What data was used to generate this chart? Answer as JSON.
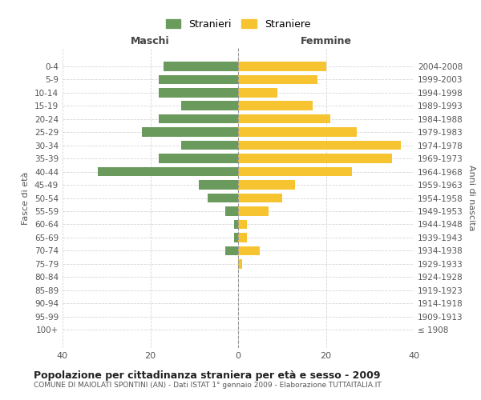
{
  "age_groups": [
    "100+",
    "95-99",
    "90-94",
    "85-89",
    "80-84",
    "75-79",
    "70-74",
    "65-69",
    "60-64",
    "55-59",
    "50-54",
    "45-49",
    "40-44",
    "35-39",
    "30-34",
    "25-29",
    "20-24",
    "15-19",
    "10-14",
    "5-9",
    "0-4"
  ],
  "birth_years": [
    "≤ 1908",
    "1909-1913",
    "1914-1918",
    "1919-1923",
    "1924-1928",
    "1929-1933",
    "1934-1938",
    "1939-1943",
    "1944-1948",
    "1949-1953",
    "1954-1958",
    "1959-1963",
    "1964-1968",
    "1969-1973",
    "1974-1978",
    "1979-1983",
    "1984-1988",
    "1989-1993",
    "1994-1998",
    "1999-2003",
    "2004-2008"
  ],
  "males": [
    0,
    0,
    0,
    0,
    0,
    0,
    3,
    1,
    1,
    3,
    7,
    9,
    32,
    18,
    13,
    22,
    18,
    13,
    18,
    18,
    17
  ],
  "females": [
    0,
    0,
    0,
    0,
    0,
    1,
    5,
    2,
    2,
    7,
    10,
    13,
    26,
    35,
    37,
    27,
    21,
    17,
    9,
    18,
    20
  ],
  "male_color": "#6a9a5c",
  "female_color": "#f5c430",
  "bar_edge_color": "none",
  "background_color": "#ffffff",
  "grid_color": "#cccccc",
  "title": "Popolazione per cittadinanza straniera per età e sesso - 2009",
  "subtitle": "COMUNE DI MAIOLATI SPONTINI (AN) - Dati ISTAT 1° gennaio 2009 - Elaborazione TUTTAITALIA.IT",
  "xlabel_left": "Maschi",
  "xlabel_right": "Femmine",
  "ylabel_left": "Fasce di età",
  "ylabel_right": "Anni di nascita",
  "xlim": 40,
  "legend_stranieri": "Stranieri",
  "legend_straniere": "Straniere"
}
